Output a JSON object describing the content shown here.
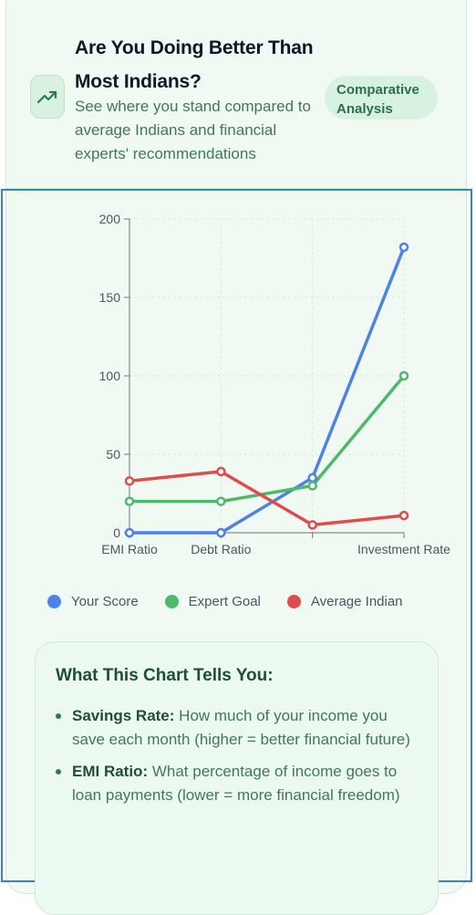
{
  "header": {
    "title": "Are You Doing Better Than Most Indians?",
    "subtitle": "See where you stand compared to average Indians and financial experts' recommendations",
    "icon": "trending-up-icon",
    "badge": "Comparative Analysis"
  },
  "colors": {
    "accent": "#2f7a4a",
    "your_score": "#4c82ee",
    "expert_goal": "#4cba68",
    "average_indian": "#e04b4b"
  },
  "chart_data": {
    "type": "line",
    "categories": [
      "EMI Ratio",
      "Debt Ratio",
      "",
      "Investment Rate"
    ],
    "tick_labels": [
      "EMI Ratio",
      "Debt Ratio",
      "Investment Rate"
    ],
    "y_ticks": [
      0,
      50,
      100,
      150,
      200
    ],
    "ylim": [
      0,
      200
    ],
    "grid": true,
    "legend_position": "bottom",
    "series": [
      {
        "name": "Your Score",
        "values": [
          0,
          0,
          35,
          182
        ]
      },
      {
        "name": "Expert Goal",
        "values": [
          20,
          20,
          30,
          100
        ]
      },
      {
        "name": "Average Indian",
        "values": [
          33,
          39,
          5,
          11
        ]
      }
    ]
  },
  "info": {
    "title": "What This Chart Tells You:",
    "items": [
      {
        "term": "Savings Rate:",
        "text": " How much of your income you save each month (higher = better financial future)"
      },
      {
        "term": "EMI Ratio:",
        "text": " What percentage of income goes to loan payments (lower = more financial freedom)"
      }
    ]
  }
}
